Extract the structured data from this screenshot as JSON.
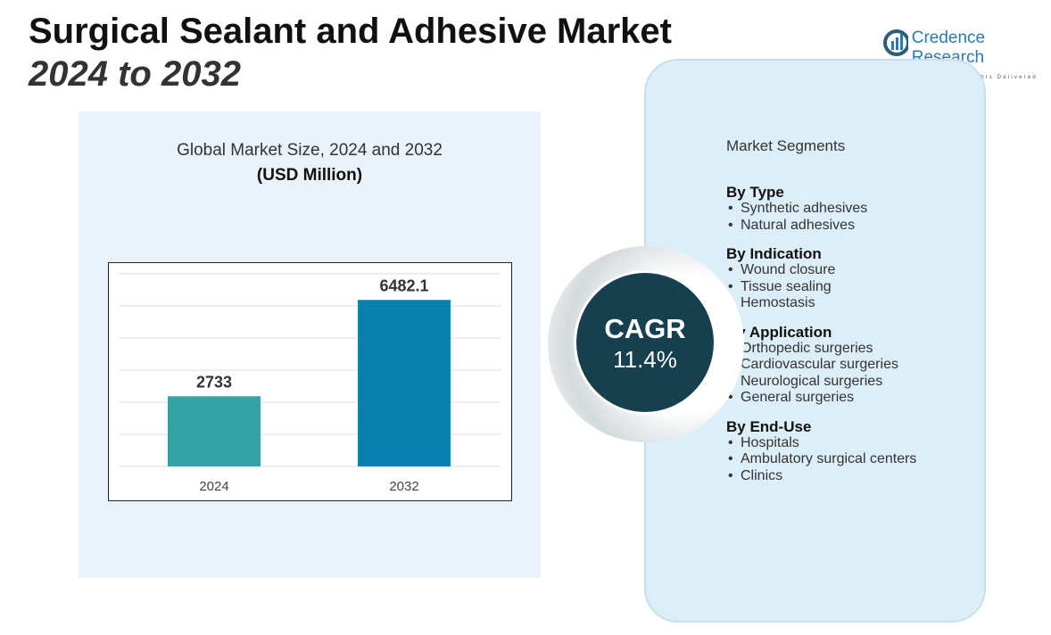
{
  "header": {
    "title": "Surgical Sealant and Adhesive Market",
    "subtitle": "2024 to 2032"
  },
  "logo": {
    "name": "Credence Research",
    "tagline": "Actionable Insights Delivered"
  },
  "chart_data": {
    "type": "bar",
    "title": "Global Market Size, 2024 and 2032",
    "subtitle": "(USD Million)",
    "categories": [
      "2024",
      "2032"
    ],
    "values": [
      2733,
      6482.1
    ],
    "data_labels": [
      "2733",
      "6482.1"
    ],
    "ylim": [
      0,
      7500
    ],
    "grid": true,
    "colors": [
      "#33a3a4",
      "#0a80b0"
    ]
  },
  "cagr": {
    "label": "CAGR",
    "value": "11.4%"
  },
  "segments": {
    "title": "Market Segments",
    "groups": [
      {
        "heading": "By Type",
        "items": [
          "Synthetic adhesives",
          "Natural adhesives"
        ]
      },
      {
        "heading": "By Indication",
        "items": [
          "Wound closure",
          "Tissue sealing",
          "Hemostasis"
        ]
      },
      {
        "heading": "By Application",
        "items": [
          "Orthopedic surgeries",
          "Cardiovascular surgeries",
          "Neurological surgeries",
          "General surgeries"
        ]
      },
      {
        "heading": "By End-Use",
        "items": [
          "Hospitals",
          "Ambulatory surgical centers",
          "Clinics"
        ]
      }
    ]
  }
}
